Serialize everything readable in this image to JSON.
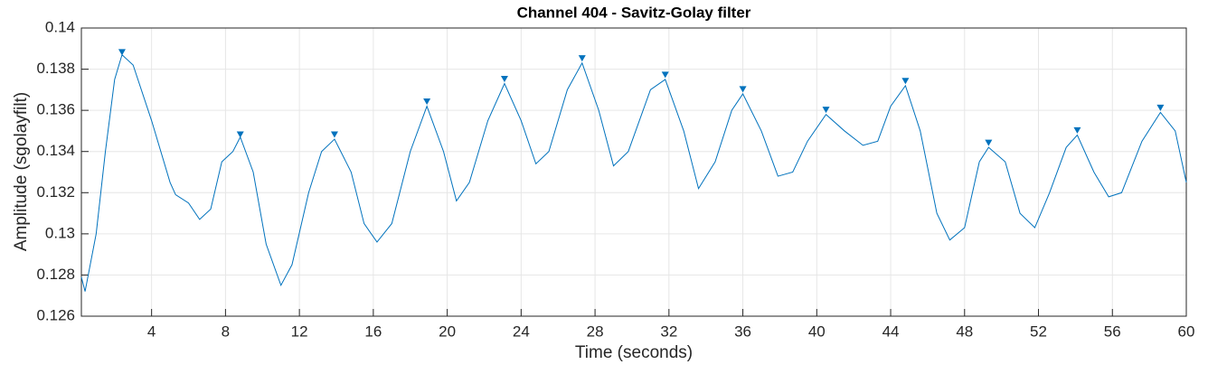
{
  "chart_data": {
    "type": "line",
    "title": "Channel 404 - Savitz-Golay filter",
    "xlabel": "Time (seconds)",
    "ylabel": "Amplitude (sgolayfilt)",
    "xlim": [
      0.2,
      60
    ],
    "ylim": [
      0.126,
      0.14
    ],
    "xticks": [
      4,
      8,
      12,
      16,
      20,
      24,
      28,
      32,
      36,
      40,
      44,
      48,
      52,
      56,
      60
    ],
    "yticks": [
      0.126,
      0.128,
      0.13,
      0.132,
      0.134,
      0.136,
      0.138,
      0.14
    ],
    "grid": true,
    "series": [
      {
        "color": "#0072bd",
        "marker": "none",
        "x": [
          0.2,
          0.4,
          1.0,
          1.5,
          2.0,
          2.4,
          3.0,
          4.0,
          5.0,
          5.3,
          6.0,
          6.6,
          7.2,
          7.8,
          8.4,
          8.8,
          9.5,
          10.2,
          11.0,
          11.6,
          12.5,
          13.2,
          13.9,
          14.8,
          15.5,
          16.2,
          17.0,
          18.0,
          18.9,
          19.8,
          20.5,
          21.2,
          22.2,
          23.1,
          24.0,
          24.8,
          25.5,
          26.5,
          27.3,
          28.2,
          29.0,
          29.8,
          31.0,
          31.8,
          32.8,
          33.6,
          34.5,
          35.4,
          36.0,
          37.0,
          37.9,
          38.7,
          39.5,
          40.5,
          41.5,
          42.5,
          43.3,
          44.0,
          44.8,
          45.6,
          46.5,
          47.2,
          48.0,
          48.8,
          49.3,
          50.2,
          51.0,
          51.8,
          52.6,
          53.5,
          54.1,
          55.0,
          55.8,
          56.5,
          57.6,
          58.6,
          59.4,
          60.0
        ],
        "values": [
          0.1279,
          0.1272,
          0.13,
          0.134,
          0.1375,
          0.1387,
          0.1382,
          0.1355,
          0.1325,
          0.1319,
          0.1315,
          0.1307,
          0.1312,
          0.1335,
          0.134,
          0.1347,
          0.133,
          0.1295,
          0.1275,
          0.1285,
          0.132,
          0.134,
          0.1346,
          0.133,
          0.1305,
          0.1296,
          0.1305,
          0.134,
          0.1362,
          0.134,
          0.1316,
          0.1325,
          0.1355,
          0.1373,
          0.1355,
          0.1334,
          0.134,
          0.137,
          0.1383,
          0.136,
          0.1333,
          0.134,
          0.137,
          0.1375,
          0.135,
          0.1322,
          0.1335,
          0.136,
          0.1368,
          0.135,
          0.1328,
          0.133,
          0.1345,
          0.1358,
          0.135,
          0.1343,
          0.1345,
          0.1362,
          0.1372,
          0.135,
          0.131,
          0.1297,
          0.1303,
          0.1335,
          0.1342,
          0.1335,
          0.131,
          0.1303,
          0.132,
          0.1342,
          0.1348,
          0.133,
          0.1318,
          0.132,
          0.1345,
          0.1359,
          0.135,
          0.1325
        ]
      },
      {
        "color": "#0072bd",
        "marker": "triangle-down",
        "x": [
          2.4,
          8.8,
          13.9,
          18.9,
          23.1,
          27.3,
          31.8,
          36.0,
          40.5,
          44.8,
          49.3,
          54.1,
          58.6
        ],
        "values": [
          0.1388,
          0.1348,
          0.1348,
          0.1364,
          0.1375,
          0.1385,
          0.1377,
          0.137,
          0.136,
          0.1374,
          0.1344,
          0.135,
          0.1361
        ]
      }
    ]
  }
}
